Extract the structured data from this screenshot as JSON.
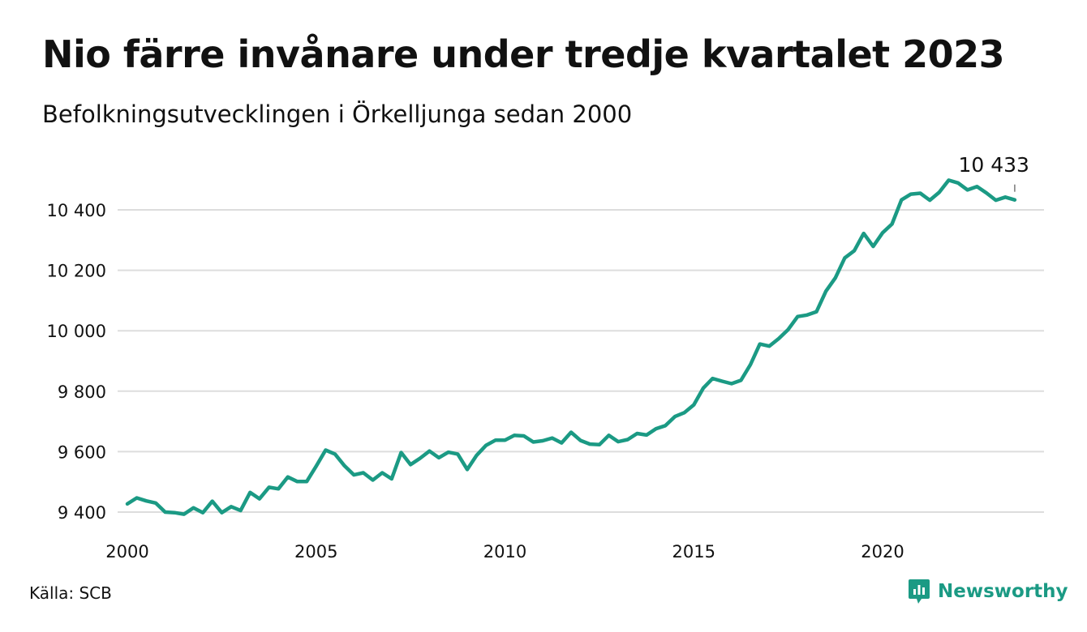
{
  "title": "Nio färre invånare under tredje kvartalet 2023",
  "subtitle": "Befolkningsutvecklingen i Örkelljunga sedan 2000",
  "source": "Källa: SCB",
  "brand": {
    "name": "Newsworthy",
    "icon": "newsworthy-logo-icon",
    "color": "#1b9a84"
  },
  "chart_data": {
    "type": "line",
    "title": "Nio färre invånare under tredje kvartalet 2023",
    "subtitle": "Befolkningsutvecklingen i Örkelljunga sedan 2000",
    "xlabel": "",
    "ylabel": "",
    "xlim": [
      2000.0,
      2024.5
    ],
    "ylim": [
      9340,
      10540
    ],
    "x_ticks": [
      2000,
      2005,
      2010,
      2015,
      2020
    ],
    "x_tick_labels": [
      "2000",
      "2005",
      "2010",
      "2015",
      "2020"
    ],
    "y_ticks": [
      9400,
      9600,
      9800,
      10000,
      10200,
      10400
    ],
    "y_tick_labels": [
      "9 400",
      "9 600",
      "9 800",
      "10 000",
      "10 200",
      "10 400"
    ],
    "grid": "horizontal",
    "line_color": "#1b9a84",
    "last_value_label": "10 433",
    "series": [
      {
        "x": [
          2000.0,
          2000.25,
          2000.5,
          2000.75,
          2001.0,
          2001.25,
          2001.5,
          2001.75,
          2002.0,
          2002.25,
          2002.5,
          2002.75,
          2003.0,
          2003.25,
          2003.5,
          2003.75,
          2004.0,
          2004.25,
          2004.5,
          2004.75,
          2005.0,
          2005.25,
          2005.5,
          2005.75,
          2006.0,
          2006.25,
          2006.5,
          2006.75,
          2007.0,
          2007.25,
          2007.5,
          2007.75,
          2008.0,
          2008.25,
          2008.5,
          2008.75,
          2009.0,
          2009.25,
          2009.5,
          2009.75,
          2010.0,
          2010.25,
          2010.5,
          2010.75,
          2011.0,
          2011.25,
          2011.5,
          2011.75,
          2012.0,
          2012.25,
          2012.5,
          2012.75,
          2013.0,
          2013.25,
          2013.5,
          2013.75,
          2014.0,
          2014.25,
          2014.5,
          2014.75,
          2015.0,
          2015.25,
          2015.5,
          2015.75,
          2016.0,
          2016.25,
          2016.5,
          2016.75,
          2017.0,
          2017.25,
          2017.5,
          2017.75,
          2018.0,
          2018.25,
          2018.5,
          2018.75,
          2019.0,
          2019.25,
          2019.5,
          2019.75,
          2020.0,
          2020.25,
          2020.5,
          2020.75,
          2021.0,
          2021.25,
          2021.5,
          2021.75,
          2022.0,
          2022.25,
          2022.5,
          2022.75,
          2023.0,
          2023.25,
          2023.5
        ],
        "y": [
          9427,
          9447,
          9437,
          9430,
          9400,
          9398,
          9393,
          9414,
          9398,
          9436,
          9398,
          9418,
          9405,
          9465,
          9444,
          9482,
          9477,
          9516,
          9501,
          9501,
          9552,
          9605,
          9592,
          9553,
          9523,
          9530,
          9506,
          9530,
          9510,
          9597,
          9557,
          9578,
          9602,
          9580,
          9598,
          9592,
          9541,
          9588,
          9621,
          9638,
          9638,
          9654,
          9652,
          9632,
          9636,
          9645,
          9629,
          9664,
          9637,
          9625,
          9623,
          9654,
          9633,
          9640,
          9660,
          9655,
          9676,
          9686,
          9716,
          9729,
          9755,
          9810,
          9842,
          9833,
          9825,
          9836,
          9888,
          9956,
          9949,
          9974,
          10004,
          10047,
          10052,
          10063,
          10131,
          10175,
          10241,
          10265,
          10322,
          10279,
          10324,
          10353,
          10433,
          10452,
          10455,
          10432,
          10458,
          10498,
          10489,
          10466,
          10477,
          10456,
          10432,
          10442,
          10433
        ]
      }
    ]
  }
}
